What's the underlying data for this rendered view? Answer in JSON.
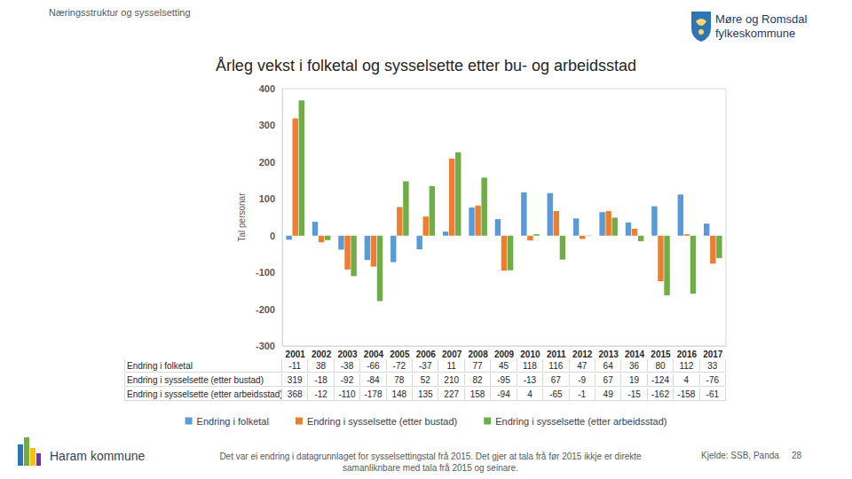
{
  "chart_data": {
    "type": "bar",
    "title": "Årleg vekst i folketal og sysselsette etter bu- og arbeidsstad",
    "y_label": "Tal personar",
    "categories": [
      "2001",
      "2002",
      "2003",
      "2004",
      "2005",
      "2006",
      "2007",
      "2008",
      "2009",
      "2010",
      "2011",
      "2012",
      "2013",
      "2014",
      "2015",
      "2016",
      "2017"
    ],
    "series": [
      {
        "name": "Endring i folketal",
        "color": "#5b9bd5",
        "values": [
          -11,
          38,
          -38,
          -66,
          -72,
          -37,
          11,
          77,
          45,
          118,
          116,
          47,
          64,
          36,
          80,
          112,
          33
        ]
      },
      {
        "name": "Endring i sysselsette (etter bustad)",
        "color": "#ed7d31",
        "values": [
          319,
          -18,
          -92,
          -84,
          78,
          52,
          210,
          82,
          -95,
          -13,
          67,
          -9,
          67,
          19,
          -124,
          4,
          -76
        ]
      },
      {
        "name": "Endring i sysselsette (etter arbeidsstad)",
        "color": "#70ad47",
        "values": [
          368,
          -12,
          -110,
          -178,
          148,
          135,
          227,
          158,
          -94,
          4,
          -65,
          -1,
          49,
          -15,
          -162,
          -158,
          -61
        ]
      }
    ],
    "ylim": [
      -300,
      400
    ],
    "yticks": [
      -300,
      -200,
      -100,
      0,
      100,
      200,
      300,
      400
    ],
    "grid": false,
    "legend": "bottom"
  },
  "page": {
    "header": "Næringsstruktur og sysselsetting",
    "logo": [
      "Møre og Romsdal",
      "fylkeskommune"
    ],
    "footer_left": "Haram kommune",
    "note": "Det var ei endring i datagrunnlaget for sysselsettingstal frå 2015. Det gjer at tala frå før 2015 ikkje er direkte samanliknbare med tala frå 2015 og seinare.",
    "source": "Kjelde: SSB, Panda",
    "page_number": "28"
  }
}
